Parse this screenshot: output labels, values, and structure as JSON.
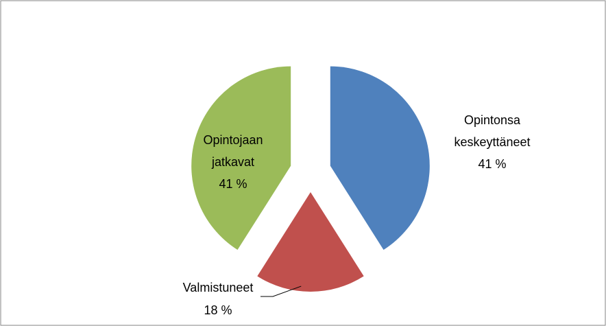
{
  "chart_data": {
    "type": "pie",
    "categories": [
      "Opintonsa keskeyttäneet",
      "Valmistuneet",
      "Opintojaan jatkavat"
    ],
    "values": [
      41,
      18,
      41
    ],
    "value_labels": [
      "41 %",
      "18 %",
      "41 %"
    ],
    "colors": [
      "#4f81bd",
      "#c0504d",
      "#9bbb59"
    ],
    "exploded": true
  }
}
